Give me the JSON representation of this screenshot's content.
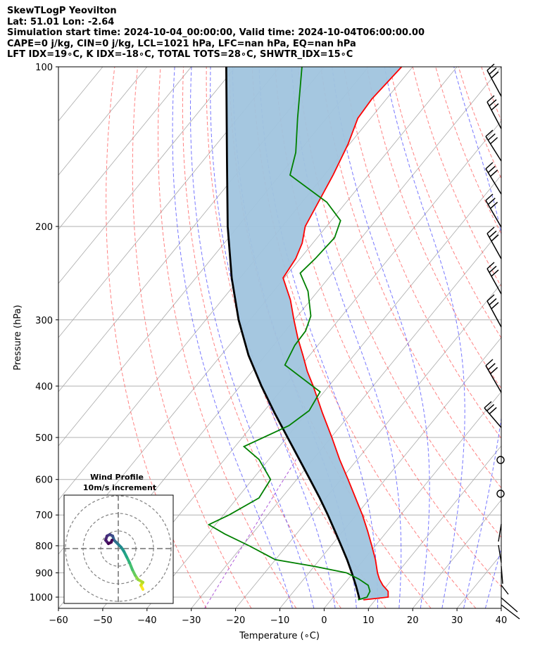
{
  "header": {
    "line1": "SkewTLogP Yeovilton",
    "line2": "Lat: 51.01   Lon: -2.64",
    "line3": "Simulation start time: 2024-10-04_00:00:00, Valid time: 2024-10-04T06:00:00.00",
    "line4": "CAPE=0 j/kg, CIN=0 j/kg, LCL=1021 hPa, LFC=nan hPa, EQ=nan hPa",
    "line5": "LFT IDX=19∘C, K IDX=-18∘C, TOTAL TOTS=28∘C, SHWTR_IDX=15∘C"
  },
  "colors": {
    "temperature": "#ff0000",
    "dewpoint": "#008000",
    "parcel": "#000000",
    "shade": "#a0c4de",
    "dry_adiabat": "#ff5a5a",
    "moist_adiabat": "#4b4bff",
    "mixing_ratio": "#9b30d0",
    "isotherm": "#aaaaaa"
  },
  "chart_data": [
    {
      "type": "line",
      "kind": "skew-T log-P diagram",
      "xlabel": "Temperature (∘C)",
      "ylabel": "Pressure (hPa)",
      "xlim": [
        -60,
        40
      ],
      "ylim": [
        1050,
        100
      ],
      "y_scale": "log",
      "grid": true,
      "x_ticks": [
        "−60",
        "−50",
        "−40",
        "−30",
        "−20",
        "−10",
        "0",
        "10",
        "20",
        "30",
        "40"
      ],
      "y_ticks": [
        "100",
        "200",
        "300",
        "400",
        "500",
        "600",
        "700",
        "800",
        "900",
        "1000"
      ],
      "series": [
        {
          "role": "temperature",
          "pressure": [
            1012,
            1000,
            975,
            950,
            925,
            900,
            850,
            800,
            750,
            700,
            650,
            600,
            550,
            500,
            450,
            400,
            375,
            350,
            325,
            300,
            275,
            250,
            230,
            215,
            200,
            180,
            160,
            140,
            125,
            115,
            100
          ],
          "temperature": [
            7.3,
            12.4,
            11.3,
            9.0,
            7.1,
            5.5,
            2.6,
            -0.8,
            -4.5,
            -8.6,
            -13.3,
            -18.4,
            -24.0,
            -29.8,
            -36.4,
            -43.5,
            -47.6,
            -51.5,
            -55.8,
            -60.1,
            -64.6,
            -70.3,
            -71.0,
            -72.4,
            -74.8,
            -76.3,
            -78.0,
            -80.3,
            -82.9,
            -83.3,
            -82.5
          ]
        },
        {
          "role": "dewpoint",
          "pressure": [
            1012,
            1000,
            975,
            950,
            925,
            900,
            875,
            850,
            800,
            760,
            730,
            700,
            650,
            600,
            550,
            520,
            475,
            445,
            410,
            365,
            335,
            315,
            295,
            265,
            245,
            230,
            210,
            195,
            180,
            160,
            145,
            125,
            100
          ],
          "dewpoint": [
            6.1,
            7.6,
            7.2,
            5.7,
            2.5,
            -1.5,
            -10.0,
            -20.0,
            -28.5,
            -36.2,
            -41.5,
            -38.7,
            -35.1,
            -35.9,
            -42.2,
            -48.0,
            -41.7,
            -39.9,
            -40.9,
            -53.8,
            -55.2,
            -55.4,
            -57.0,
            -62.2,
            -67.3,
            -66.6,
            -66.1,
            -67.9,
            -74.4,
            -87.7,
            -90.6,
            -96.5,
            -105.0
          ]
        },
        {
          "role": "parcel",
          "pressure": [
            1012,
            1000,
            950,
            900,
            850,
            800,
            750,
            700,
            650,
            600,
            550,
            500,
            450,
            400,
            350,
            300,
            250,
            200,
            150,
            100
          ],
          "temperature": [
            6.4,
            5.8,
            2.9,
            -0.3,
            -3.8,
            -7.7,
            -11.9,
            -16.4,
            -21.4,
            -27.0,
            -33.1,
            -39.8,
            -47.2,
            -55.2,
            -63.8,
            -72.6,
            -81.9,
            -92.3,
            -104.7,
            -122.1
          ]
        }
      ],
      "shading": "between temperature and parcel profiles",
      "wind_barbs": "right margin, 100-1000 hPa"
    },
    {
      "type": "line",
      "kind": "hodograph",
      "title": "Wind Profile",
      "subtitle": "10m/s increment",
      "colormap": "viridis"
    }
  ]
}
